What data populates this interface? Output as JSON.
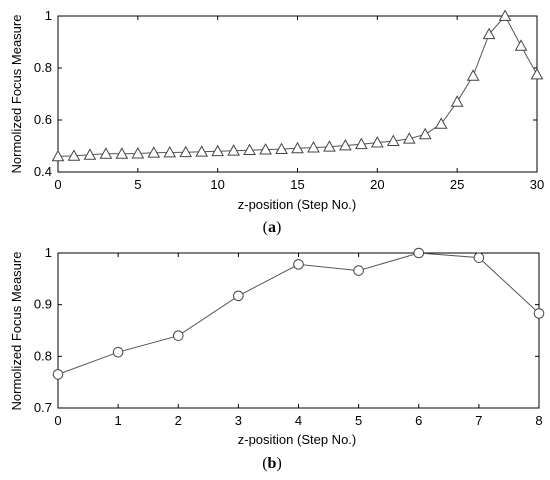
{
  "chart_data": [
    {
      "type": "line",
      "caption_letter": "a",
      "xlabel": "z-position (Step No.)",
      "ylabel": "Normolized Focus Measure",
      "xlim": [
        0,
        30
      ],
      "ylim": [
        0.4,
        1.0
      ],
      "xticks": [
        0,
        5,
        10,
        15,
        20,
        25,
        30
      ],
      "yticks": [
        0.4,
        0.6,
        0.8,
        1
      ],
      "ytick_labels": [
        "0.4",
        "0.6",
        "0.8",
        "1"
      ],
      "grid": false,
      "marker": "triangle",
      "series": [
        {
          "x": [
            0,
            1,
            2,
            3,
            4,
            5,
            6,
            7,
            8,
            9,
            10,
            11,
            12,
            13,
            14,
            15,
            16,
            17,
            18,
            19,
            20,
            21,
            22,
            23,
            24,
            25,
            26,
            27,
            28,
            29,
            30
          ],
          "values": [
            0.46,
            0.462,
            0.466,
            0.47,
            0.47,
            0.471,
            0.474,
            0.475,
            0.476,
            0.478,
            0.48,
            0.482,
            0.484,
            0.486,
            0.488,
            0.491,
            0.494,
            0.497,
            0.502,
            0.507,
            0.513,
            0.519,
            0.528,
            0.545,
            0.585,
            0.67,
            0.77,
            0.93,
            1.0,
            0.885,
            0.775
          ]
        }
      ]
    },
    {
      "type": "line",
      "caption_letter": "b",
      "xlabel": "z-position (Step No.)",
      "ylabel": "Normolized Focus Measure",
      "xlim": [
        0,
        8
      ],
      "ylim": [
        0.7,
        1.0
      ],
      "xticks": [
        0,
        1,
        2,
        3,
        4,
        5,
        6,
        7,
        8
      ],
      "yticks": [
        0.7,
        0.8,
        0.9,
        1
      ],
      "ytick_labels": [
        "0.7",
        "0.8",
        "0.9",
        "1"
      ],
      "grid": false,
      "marker": "circle",
      "series": [
        {
          "x": [
            0,
            1,
            2,
            3,
            4,
            5,
            6,
            7,
            8
          ],
          "values": [
            0.765,
            0.808,
            0.84,
            0.917,
            0.978,
            0.966,
            1.0,
            0.991,
            0.883
          ]
        }
      ]
    }
  ]
}
